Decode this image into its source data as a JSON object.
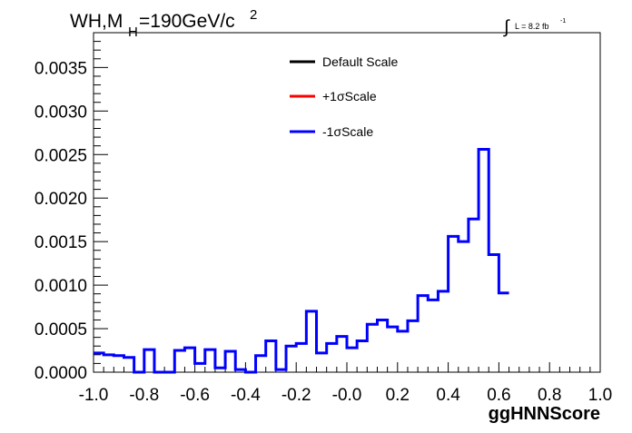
{
  "chart_data": {
    "type": "step-histogram",
    "title_main": "WH,M",
    "title_sub": "H",
    "title_mid": "=190GeV/c",
    "title_sup": "2",
    "lumi_integral": "∫",
    "lumi_text": "L = 8.2 fb",
    "lumi_sup": "-1",
    "xlabel": "ggHNNScore",
    "ylabel": "",
    "xlim": [
      -1.0,
      1.0
    ],
    "ylim": [
      0.0,
      0.0039
    ],
    "x_ticks": [
      "-1.0",
      "-0.8",
      "-0.6",
      "-0.4",
      "-0.2",
      "-0.0",
      "0.2",
      "0.4",
      "0.6",
      "0.8",
      "1.0"
    ],
    "x_tick_values": [
      -1.0,
      -0.8,
      -0.6,
      -0.4,
      -0.2,
      0.0,
      0.2,
      0.4,
      0.6,
      0.8,
      1.0
    ],
    "y_ticks": [
      "0.0000",
      "0.0005",
      "0.0010",
      "0.0015",
      "0.0020",
      "0.0025",
      "0.0030",
      "0.0035"
    ],
    "y_tick_values": [
      0.0,
      0.0005,
      0.001,
      0.0015,
      0.002,
      0.0025,
      0.003,
      0.0035
    ],
    "bin_edges_start": -1.0,
    "bin_width": 0.04,
    "legend": [
      {
        "name": "Default Scale",
        "color": "#000000"
      },
      {
        "name": "+1σScale",
        "color": "#ff0000"
      },
      {
        "name": "-1σScale",
        "color": "#0000ff"
      }
    ],
    "series": [
      {
        "name": "-1σScale",
        "color": "#0000ff",
        "values": [
          0.00022,
          0.0002,
          0.00019,
          0.00017,
          0.0,
          0.00026,
          0.0,
          0.0,
          0.00025,
          0.00028,
          0.0001,
          0.00026,
          5e-05,
          0.00024,
          3e-05,
          0.0,
          0.00019,
          0.00036,
          3e-05,
          0.0003,
          0.00033,
          0.0007,
          0.00022,
          0.00033,
          0.00041,
          0.00028,
          0.00036,
          0.00055,
          0.0006,
          0.00052,
          0.00047,
          0.00059,
          0.00088,
          0.00083,
          0.00093,
          0.00156,
          0.0015,
          0.00176,
          0.00256,
          0.00135,
          0.00091
        ]
      }
    ]
  }
}
